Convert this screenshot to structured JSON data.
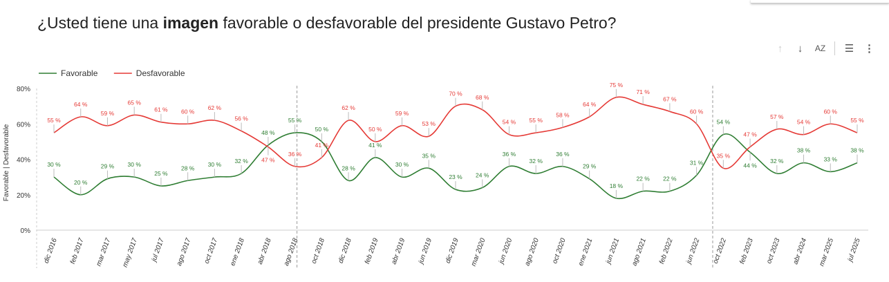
{
  "title_parts": {
    "pre": "¿Usted tiene una ",
    "bold": "imagen",
    "post": " favorable o desfavorable del presidente Gustavo Petro?"
  },
  "toolbar": {
    "icons": [
      "arrow-up-icon",
      "arrow-down-icon",
      "sort-az-icon",
      "filter-icon",
      "more-vert-icon"
    ],
    "sort_label": "AZ"
  },
  "chart_data": {
    "type": "line",
    "title": "¿Usted tiene una imagen favorable o desfavorable del presidente Gustavo Petro?",
    "ylabel": "Favorable | Desfavorable",
    "ylim": [
      0,
      80
    ],
    "yticks": [
      "0%",
      "20%",
      "40%",
      "60%",
      "80%"
    ],
    "legend_position": "top-left",
    "categories": [
      "dic 2016",
      "feb 2017",
      "mar 2017",
      "may 2017",
      "jul 2017",
      "ago 2017",
      "oct 2017",
      "ene 2018",
      "abr 2018",
      "ago 2018",
      "oct 2018",
      "dic 2018",
      "feb 2019",
      "abr 2019",
      "jun 2019",
      "dic 2019",
      "mar 2020",
      "jun 2020",
      "ago 2020",
      "oct 2020",
      "ene 2021",
      "jun 2021",
      "ago 2021",
      "feb 2022",
      "jun 2022",
      "oct 2022",
      "feb 2023",
      "oct 2023",
      "abr 2024",
      "mar 2025",
      "jul 2025"
    ],
    "series": [
      {
        "name": "Favorable",
        "color": "#2e7d32",
        "values": [
          30,
          20,
          29,
          30,
          25,
          28,
          30,
          32,
          48,
          55,
          50,
          28,
          41,
          30,
          35,
          23,
          24,
          36,
          32,
          36,
          29,
          18,
          22,
          22,
          31,
          54,
          44,
          32,
          38,
          33,
          38
        ]
      },
      {
        "name": "Desfavorable",
        "color": "#e53935",
        "values": [
          55,
          64,
          59,
          65,
          61,
          60,
          62,
          56,
          47,
          36,
          41,
          62,
          50,
          59,
          53,
          70,
          68,
          54,
          55,
          58,
          64,
          75,
          71,
          67,
          60,
          35,
          47,
          57,
          54,
          60,
          55
        ]
      }
    ],
    "reference_lines": [
      "ago 2018",
      "oct 2022"
    ]
  }
}
